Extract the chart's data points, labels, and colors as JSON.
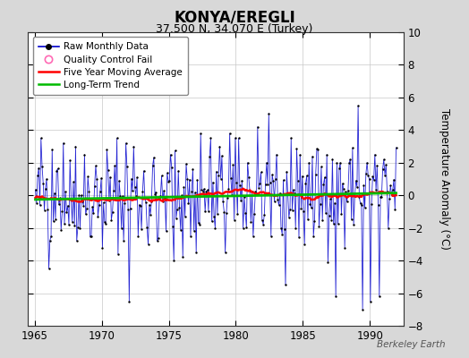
{
  "title": "KONYA/EREGLI",
  "subtitle": "37.500 N, 34.070 E (Turkey)",
  "ylabel": "Temperature Anomaly (°C)",
  "watermark": "Berkeley Earth",
  "xlim": [
    1964.5,
    1992.5
  ],
  "ylim": [
    -8,
    10
  ],
  "yticks": [
    -8,
    -6,
    -4,
    -2,
    0,
    2,
    4,
    6,
    8,
    10
  ],
  "xticks": [
    1965,
    1970,
    1975,
    1980,
    1985,
    1990
  ],
  "background_color": "#d8d8d8",
  "plot_bg_color": "#ffffff",
  "raw_color": "#0000cc",
  "ma_color": "#ff0000",
  "trend_color": "#00bb00",
  "qc_color": "#ff69b4",
  "start_year": 1965,
  "end_year": 1991,
  "seed": 42
}
